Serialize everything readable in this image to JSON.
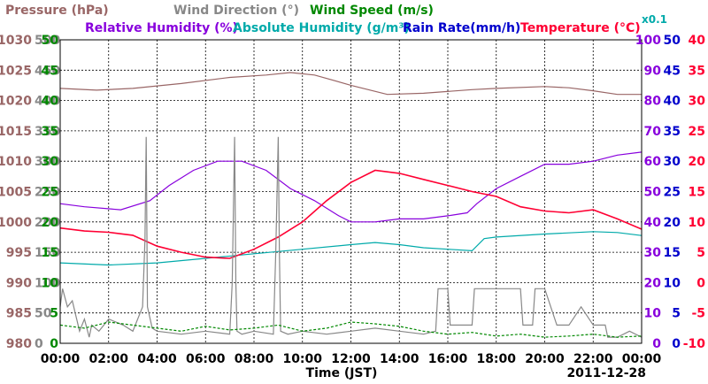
{
  "chart_data": {
    "type": "line",
    "date_label": "2011-12-28",
    "xlabel": "Time (JST)",
    "x_ticks": [
      "00:00",
      "02:00",
      "04:00",
      "06:00",
      "08:00",
      "10:00",
      "12:00",
      "14:00",
      "16:00",
      "18:00",
      "20:00",
      "22:00",
      "00:00"
    ],
    "grid": true,
    "scale_note": "x0.1",
    "titles": [
      {
        "id": "pressure",
        "label": "Pressure (hPa)",
        "color": "#996666"
      },
      {
        "id": "wind_dir",
        "label": "Wind Direction (°)",
        "color": "#888888"
      },
      {
        "id": "wind_speed",
        "label": "Wind Speed (m/s)",
        "color": "#008800"
      },
      {
        "id": "rh",
        "label": "Relative Humidity (%)",
        "color": "#8800dd"
      },
      {
        "id": "ah",
        "label": "Absolute Humidity (g/m³)",
        "color": "#00aaaa"
      },
      {
        "id": "rain",
        "label": "Rain Rate(mm/h)",
        "color": "#0000cc"
      },
      {
        "id": "temp",
        "label": "Temperature (°C)",
        "color": "#ff0033"
      }
    ],
    "axes": {
      "pressure": {
        "ticks": [
          "1030",
          "1025",
          "1020",
          "1015",
          "1010",
          "1005",
          "1000",
          "995",
          "990",
          "985",
          "980"
        ],
        "ylim": [
          980,
          1030
        ],
        "color": "#996666"
      },
      "wind_dir": {
        "ticks": [
          "500",
          "450",
          "400",
          "350",
          "300",
          "250",
          "200",
          "150",
          "100",
          "50",
          "0"
        ],
        "ylim": [
          0,
          500
        ],
        "color": "#888888"
      },
      "wind_speed": {
        "ticks": [
          "50",
          "45",
          "40",
          "35",
          "30",
          "25",
          "20",
          "15",
          "10",
          "5",
          "0"
        ],
        "ylim": [
          0,
          50
        ],
        "color": "#008800"
      },
      "rh": {
        "ticks": [
          "100",
          "90",
          "80",
          "70",
          "60",
          "50",
          "40",
          "30",
          "20",
          "10",
          "0"
        ],
        "ylim": [
          0,
          100
        ],
        "color": "#8800dd"
      },
      "rain": {
        "ticks": [
          "50",
          "45",
          "40",
          "35",
          "30",
          "25",
          "20",
          "15",
          "10",
          "5",
          "0"
        ],
        "ylim": [
          0,
          50
        ],
        "color": "#0000cc"
      },
      "temp": {
        "ticks": [
          "40",
          "35",
          "30",
          "25",
          "20",
          "15",
          "10",
          "5",
          "0",
          "-5",
          "-10"
        ],
        "ylim": [
          -10,
          40
        ],
        "color": "#ff0033"
      }
    },
    "series": [
      {
        "name": "Pressure (hPa)",
        "color": "#996666",
        "axis": "pressure",
        "x": [
          0,
          1.5,
          3,
          5,
          7,
          8.5,
          9.5,
          10.5,
          12,
          13.5,
          15,
          17,
          18,
          20,
          21,
          22,
          23,
          24
        ],
        "y": [
          1022.0,
          1021.7,
          1022.0,
          1022.8,
          1023.8,
          1024.2,
          1024.6,
          1024.2,
          1022.5,
          1021.0,
          1021.2,
          1021.8,
          1022.0,
          1022.3,
          1022.1,
          1021.6,
          1021.0,
          1021.0
        ]
      },
      {
        "name": "Relative Humidity (%)",
        "color": "#8800dd",
        "axis": "rh",
        "x": [
          0,
          1,
          2.5,
          3.7,
          4.5,
          5.5,
          6.5,
          7.5,
          8.5,
          9.5,
          10.5,
          11.5,
          12,
          13,
          14,
          15,
          16,
          16.8,
          17.2,
          18,
          19,
          20,
          21,
          22,
          23,
          24
        ],
        "y": [
          46,
          45,
          44,
          47,
          52,
          57,
          60,
          60,
          57,
          51,
          47,
          42,
          40,
          40,
          41,
          41,
          42,
          43,
          46,
          51,
          55,
          59,
          59,
          60,
          62,
          63
        ]
      },
      {
        "name": "Absolute Humidity (g/m³)",
        "color": "#00aaaa",
        "axis": "rh",
        "x": [
          0,
          2,
          4,
          6,
          8,
          10,
          12,
          13,
          14,
          15,
          16,
          17,
          17.5,
          18,
          20,
          22,
          23,
          24
        ],
        "y": [
          26.5,
          25.8,
          26.5,
          28.0,
          29.5,
          31.0,
          32.5,
          33.2,
          32.5,
          31.5,
          31.0,
          30.5,
          34.5,
          35.0,
          36.0,
          36.8,
          36.5,
          35.5
        ]
      },
      {
        "name": "Temperature (°C)",
        "color": "#ff0033",
        "axis": "temp",
        "x": [
          0,
          1,
          2,
          3,
          4,
          5,
          6,
          7,
          8,
          9,
          10,
          11,
          12,
          13,
          14,
          15,
          16,
          17,
          18,
          19,
          20,
          21,
          22,
          23,
          24
        ],
        "y": [
          9.0,
          8.5,
          8.3,
          7.8,
          6.0,
          5.0,
          4.2,
          4.0,
          5.5,
          7.5,
          10.0,
          13.5,
          16.5,
          18.5,
          18.0,
          17.0,
          16.0,
          15.0,
          14.2,
          12.5,
          11.8,
          11.5,
          12.0,
          10.5,
          8.8
        ]
      },
      {
        "name": "Wind Direction (°)",
        "color": "#888888",
        "axis": "wind_dir",
        "x": [
          0,
          0.1,
          0.3,
          0.5,
          0.8,
          1.0,
          1.2,
          1.3,
          1.6,
          2.0,
          2.6,
          3.0,
          3.4,
          3.5,
          3.55,
          3.6,
          3.8,
          4.0,
          5.0,
          6.0,
          7.0,
          7.1,
          7.2,
          7.25,
          7.3,
          7.5,
          8.0,
          8.8,
          8.9,
          9.0,
          9.05,
          9.1,
          9.4,
          10.0,
          11.0,
          12.0,
          13.0,
          14.0,
          15.0,
          15.5,
          15.6,
          16.0,
          16.1,
          16.5,
          17.0,
          17.1,
          18.0,
          19.0,
          19.1,
          19.5,
          19.6,
          20.0,
          20.5,
          21.0,
          21.5,
          22.0,
          22.5,
          22.6,
          23.0,
          23.5,
          24.0
        ],
        "y": [
          60,
          90,
          60,
          70,
          20,
          40,
          10,
          30,
          20,
          40,
          30,
          20,
          60,
          170,
          340,
          60,
          25,
          20,
          15,
          20,
          15,
          100,
          340,
          100,
          20,
          15,
          20,
          15,
          150,
          340,
          150,
          20,
          15,
          20,
          15,
          20,
          25,
          20,
          15,
          20,
          90,
          90,
          30,
          30,
          30,
          90,
          90,
          90,
          30,
          30,
          90,
          90,
          30,
          30,
          60,
          30,
          30,
          10,
          10,
          20,
          10
        ]
      },
      {
        "name": "Wind Speed (m/s)",
        "color": "#008800",
        "axis": "wind_speed",
        "x": [
          0,
          1,
          2,
          3,
          4,
          5,
          6,
          7,
          8,
          9,
          10,
          11,
          12,
          13,
          14,
          15,
          16,
          17,
          18,
          19,
          20,
          21,
          22,
          23,
          24
        ],
        "y": [
          3.0,
          2.5,
          3.5,
          3.0,
          2.5,
          2.0,
          2.8,
          2.2,
          2.5,
          3.0,
          2.0,
          2.5,
          3.5,
          3.2,
          2.8,
          2.0,
          1.5,
          1.8,
          1.2,
          1.5,
          1.0,
          1.2,
          1.5,
          1.0,
          1.2
        ]
      }
    ]
  }
}
